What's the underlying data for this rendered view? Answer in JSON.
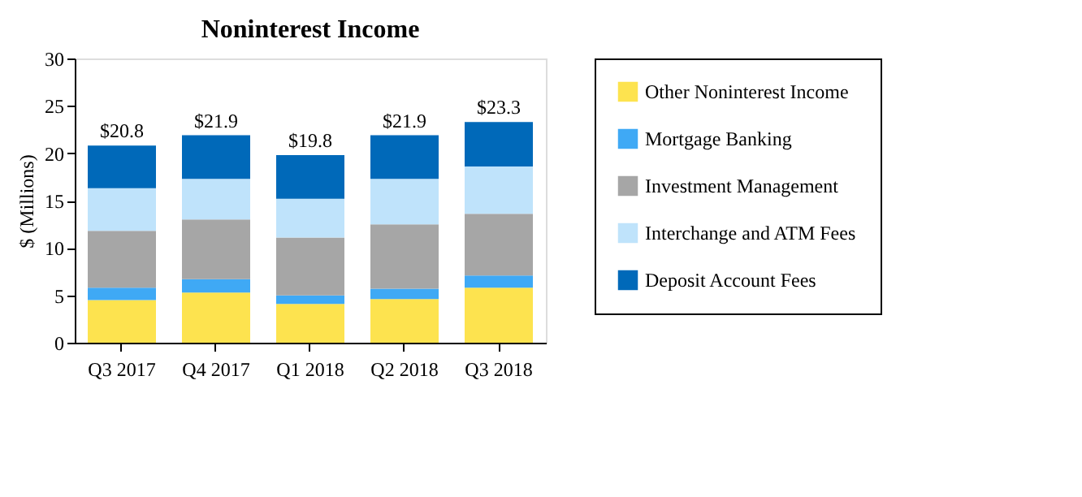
{
  "chart_data": {
    "type": "bar",
    "title": "Noninterest Income",
    "ylabel": "$ (Millions)",
    "stacked": true,
    "categories": [
      "Q3 2017",
      "Q4 2017",
      "Q1 2018",
      "Q2 2018",
      "Q3 2018"
    ],
    "series": [
      {
        "name": "Other Noninterest Income",
        "color": "#fde34f",
        "values": [
          4.5,
          5.3,
          4.1,
          4.6,
          5.8
        ]
      },
      {
        "name": "Mortgage Banking",
        "color": "#3fa9f5",
        "values": [
          1.3,
          1.4,
          0.9,
          1.1,
          1.3
        ]
      },
      {
        "name": "Investment Management",
        "color": "#a6a6a6",
        "values": [
          6.0,
          6.3,
          6.1,
          6.8,
          6.5
        ]
      },
      {
        "name": "Interchange and ATM Fees",
        "color": "#bfe3fb",
        "values": [
          4.5,
          4.3,
          4.1,
          4.8,
          5.0
        ]
      },
      {
        "name": "Deposit Account Fees",
        "color": "#0069b9",
        "values": [
          4.5,
          4.6,
          4.6,
          4.6,
          4.7
        ]
      }
    ],
    "totals": [
      "$20.8",
      "$21.9",
      "$19.8",
      "$21.9",
      "$23.3"
    ],
    "ylim": [
      0,
      30
    ],
    "yticks": [
      0,
      5,
      10,
      15,
      20,
      25,
      30
    ],
    "grid": false,
    "legend": "right"
  }
}
